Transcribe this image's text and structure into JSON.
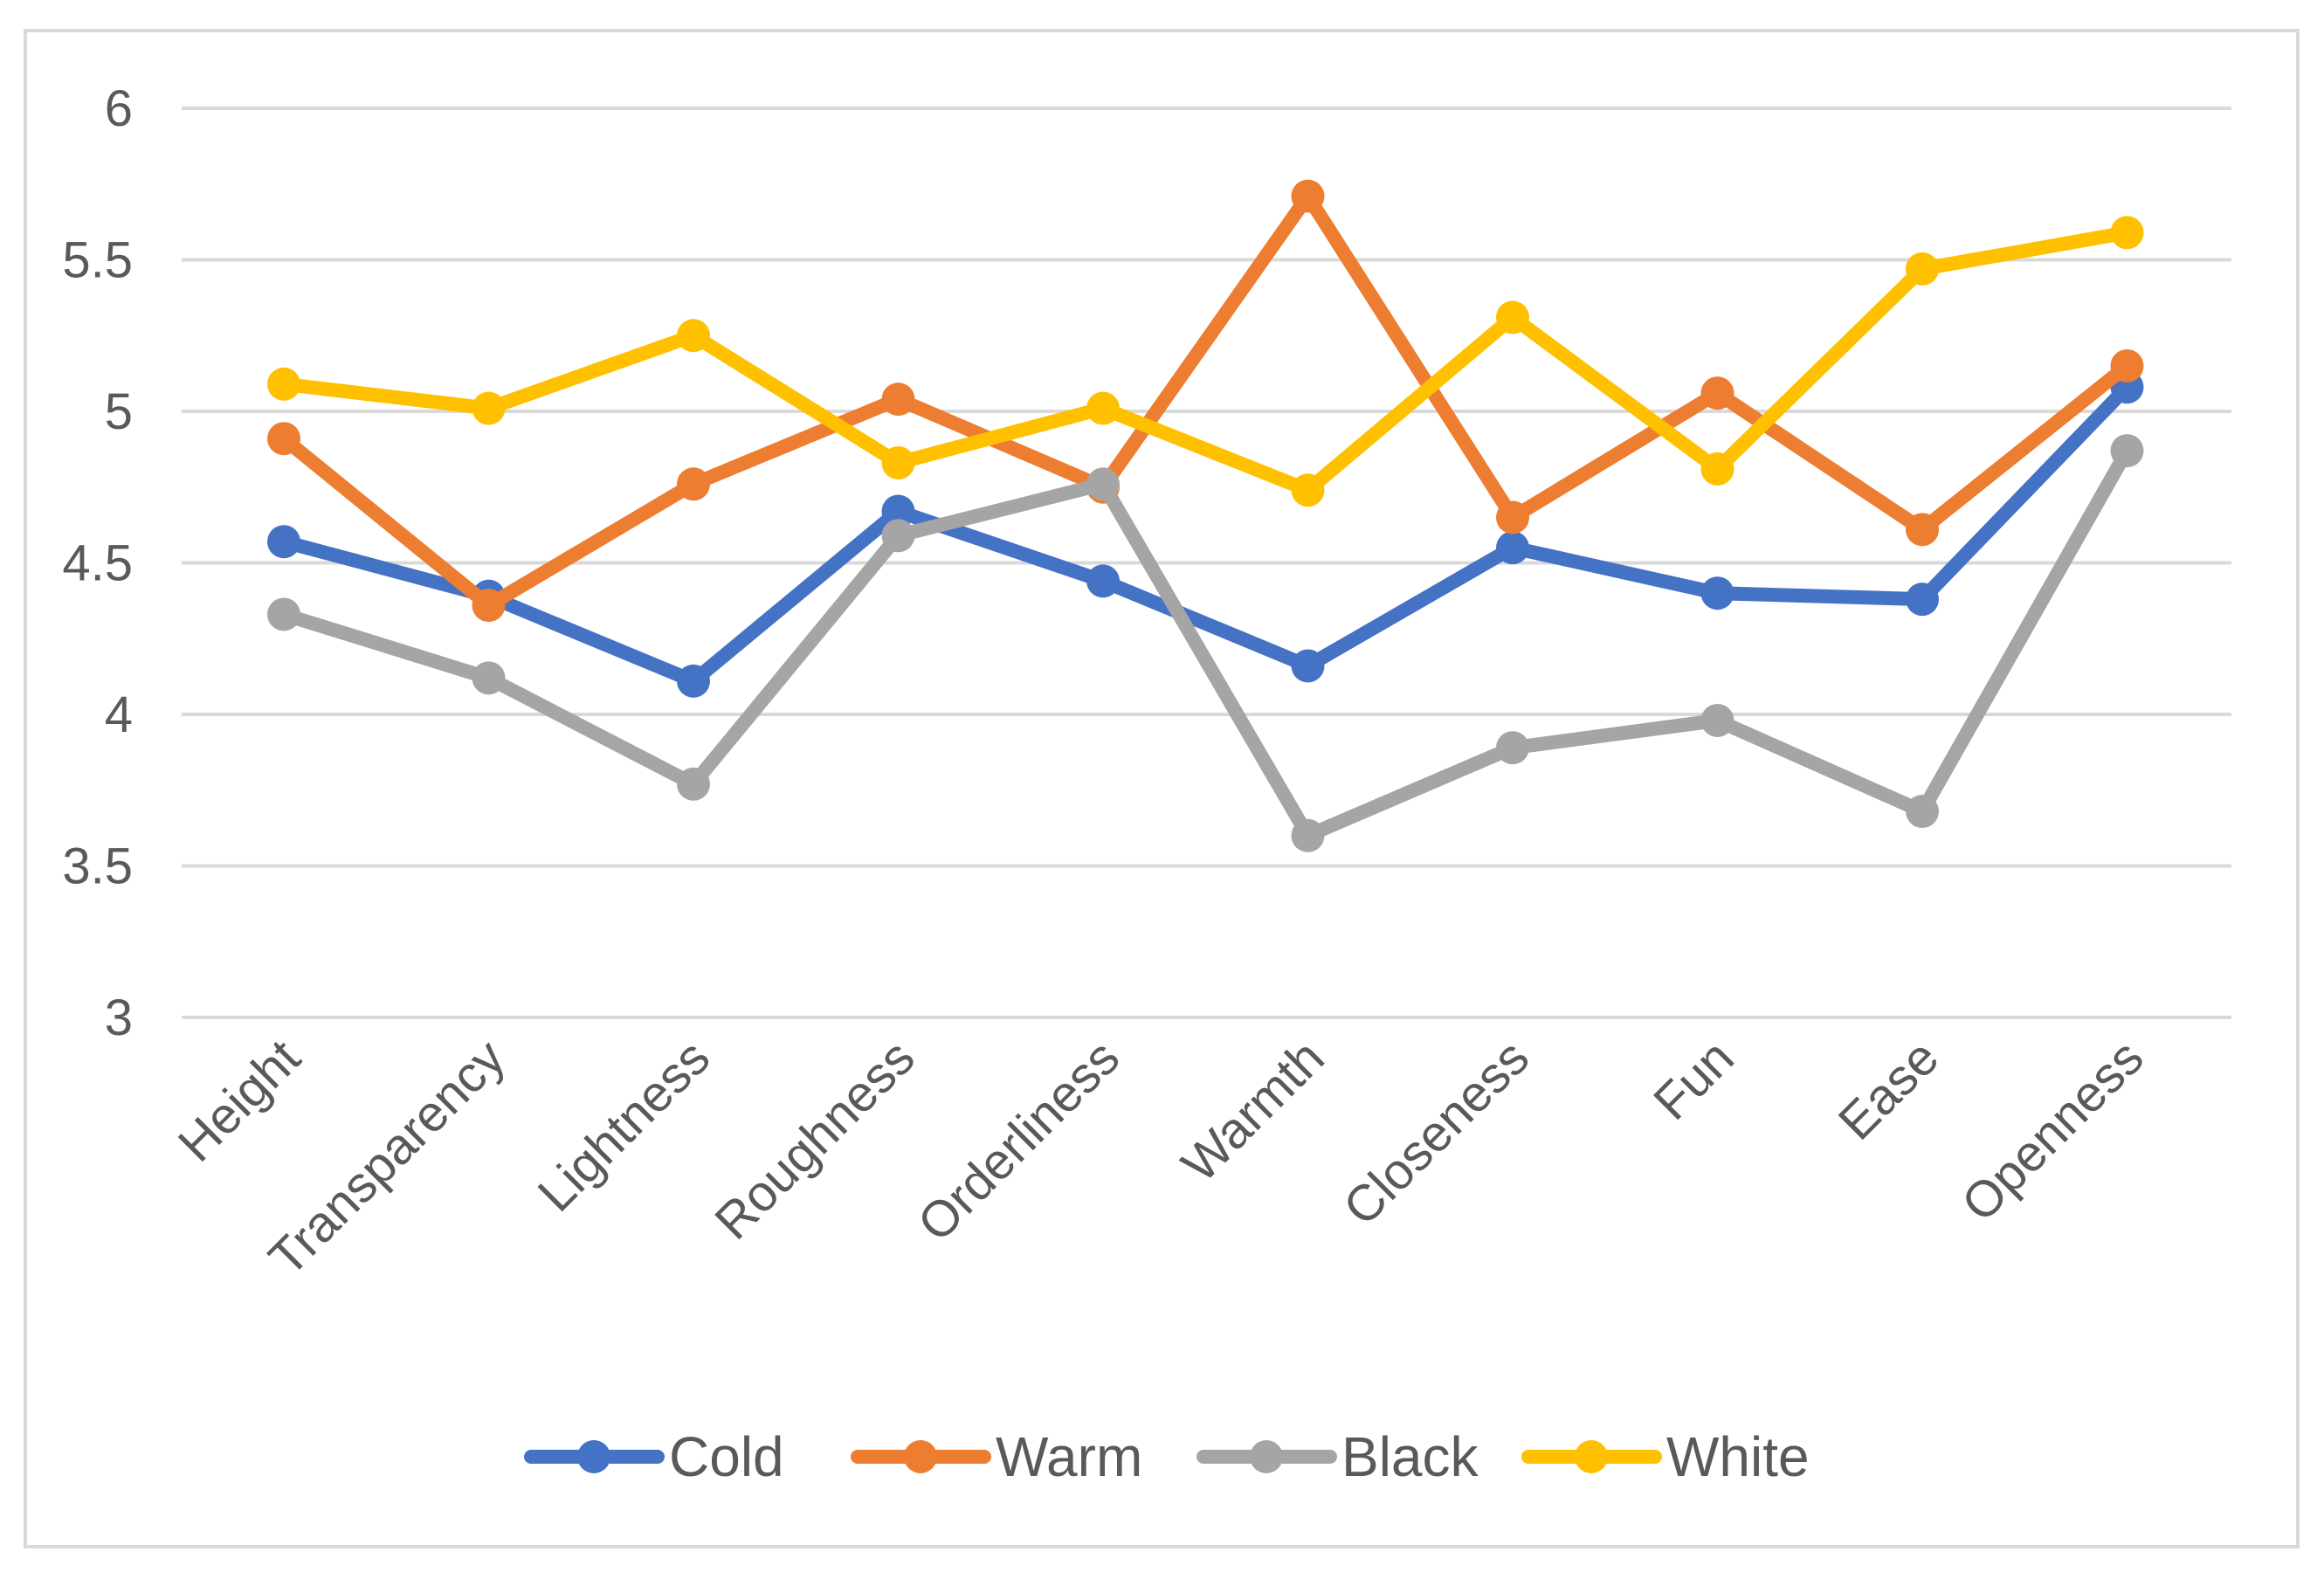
{
  "chart_data": {
    "type": "line",
    "title": "",
    "xlabel": "",
    "ylabel": "",
    "categories": [
      "Height",
      "Transparency",
      "Lightness",
      "Roughness",
      "Orderliness",
      "Warmth",
      "Closeness",
      "Fun",
      "Ease",
      "Openness"
    ],
    "ylim": [
      3,
      6
    ],
    "yticks": [
      3,
      3.5,
      4,
      4.5,
      5,
      5.5,
      6
    ],
    "ytick_labels": [
      "3",
      "3.5",
      "4",
      "4.5",
      "5",
      "5.5",
      "6"
    ],
    "grid": true,
    "legend_position": "bottom",
    "series": [
      {
        "name": "Cold",
        "color": "#4472c4",
        "values": [
          4.57,
          4.39,
          4.11,
          4.67,
          4.44,
          4.16,
          4.55,
          4.4,
          4.38,
          5.08
        ]
      },
      {
        "name": "Warm",
        "color": "#ed7d31",
        "values": [
          4.91,
          4.36,
          4.76,
          5.04,
          4.75,
          5.71,
          4.65,
          5.06,
          4.61,
          5.15
        ]
      },
      {
        "name": "Black",
        "color": "#a5a5a5",
        "values": [
          4.33,
          4.12,
          3.77,
          4.59,
          4.76,
          3.6,
          3.89,
          3.98,
          3.68,
          4.87
        ]
      },
      {
        "name": "White",
        "color": "#ffc000",
        "values": [
          5.09,
          5.01,
          5.25,
          4.83,
          5.01,
          4.74,
          5.31,
          4.81,
          5.47,
          5.59
        ]
      }
    ]
  }
}
